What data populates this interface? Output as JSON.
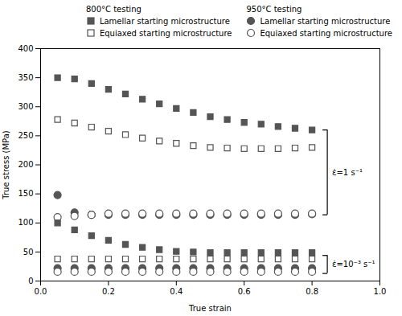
{
  "chart_data": {
    "type": "scatter",
    "xlabel": "True strain",
    "ylabel": "True stress (MPa)",
    "xlim": [
      0,
      1
    ],
    "ylim": [
      0,
      400
    ],
    "xticks": [
      {
        "value": 0,
        "label": "0.0"
      },
      0.2,
      0.4,
      0.6,
      0.8,
      {
        "value": 1,
        "label": "1.0"
      }
    ],
    "yticks": [
      0,
      50,
      100,
      150,
      200,
      250,
      300,
      350,
      400
    ],
    "grid": false,
    "legend": "top",
    "x": [
      0.05,
      0.1,
      0.15,
      0.2,
      0.25,
      0.3,
      0.35,
      0.4,
      0.45,
      0.5,
      0.55,
      0.6,
      0.65,
      0.7,
      0.75,
      0.8
    ],
    "series": [
      {
        "group": "800°C testing",
        "name": "Lamellar starting microstructure",
        "color": "#555555",
        "marker": "square",
        "values": [
          350,
          348,
          340,
          330,
          322,
          313,
          305,
          297,
          290,
          283,
          278,
          273,
          270,
          266,
          263,
          260
        ]
      },
      {
        "group": "800°C testing",
        "name": "Equiaxed starting microstructure",
        "color": "#555555",
        "marker": "square-open",
        "values": [
          278,
          272,
          265,
          258,
          252,
          246,
          241,
          237,
          233,
          230,
          229,
          228,
          228,
          228,
          229,
          230
        ]
      },
      {
        "group": "950°C testing",
        "name": "Lamellar starting microstructure",
        "color": "#555555",
        "marker": "circle",
        "values": [
          148,
          118,
          114,
          114,
          114,
          114,
          114,
          114,
          114,
          114,
          114,
          114,
          114,
          114,
          114,
          115
        ]
      },
      {
        "group": "950°C testing",
        "name": "Equiaxed starting microstructure",
        "color": "#555555",
        "marker": "circle-open",
        "values": [
          110,
          112,
          114,
          116,
          116,
          116,
          116,
          116,
          116,
          116,
          116,
          116,
          116,
          116,
          116,
          116
        ]
      },
      {
        "group": "800°C testing",
        "name": "Lamellar starting microstructure",
        "color": "#555555",
        "marker": "square",
        "values": [
          100,
          88,
          78,
          70,
          63,
          58,
          54,
          51,
          50,
          49,
          49,
          49,
          49,
          49,
          49,
          49
        ]
      },
      {
        "group": "800°C testing",
        "name": "Equiaxed starting microstructure",
        "color": "#555555",
        "marker": "square-open",
        "values": [
          38,
          38,
          38,
          38,
          38,
          38,
          38,
          38,
          38,
          38,
          38,
          38,
          38,
          38,
          38,
          38
        ]
      },
      {
        "group": "950°C testing",
        "name": "Lamellar starting microstructure",
        "color": "#555555",
        "marker": "circle",
        "values": [
          22,
          22,
          22,
          22,
          22,
          22,
          22,
          22,
          22,
          22,
          22,
          22,
          22,
          22,
          22,
          22
        ]
      },
      {
        "group": "950°C testing",
        "name": "Equiaxed starting microstructure",
        "color": "#555555",
        "marker": "circle-open",
        "values": [
          16,
          16,
          16,
          16,
          16,
          16,
          16,
          16,
          16,
          16,
          16,
          16,
          16,
          16,
          16,
          16
        ]
      }
    ],
    "annotations": [
      {
        "text": "ε̇=1 s⁻¹",
        "x": 0.845,
        "y": [
          114,
          260
        ]
      },
      {
        "text": "ε̇=10⁻³ s⁻¹",
        "x": 0.845,
        "y": [
          13,
          44
        ]
      }
    ]
  }
}
